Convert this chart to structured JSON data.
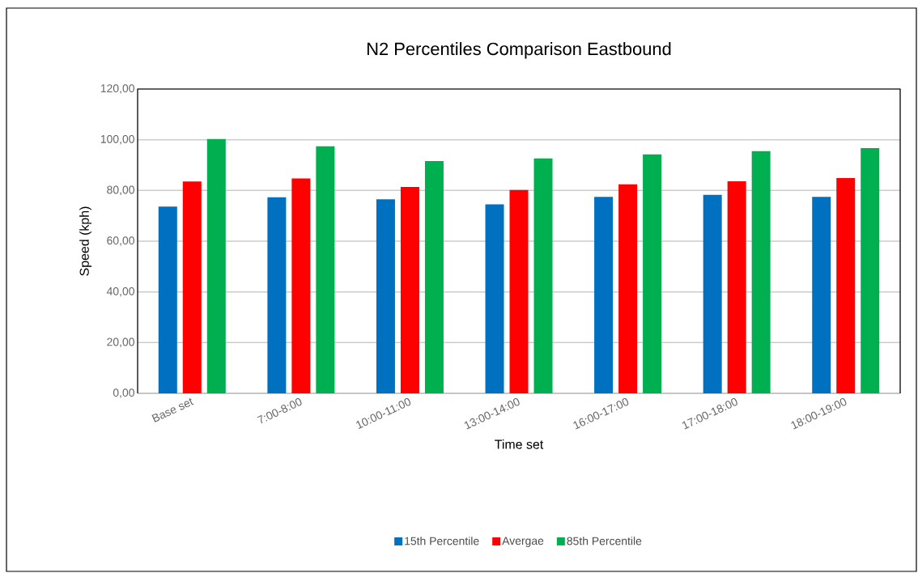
{
  "chart_data": {
    "type": "bar",
    "title": "N2 Percentiles Comparison Eastbound",
    "xlabel": "Time set",
    "ylabel": "Speed (kph)",
    "categories": [
      "Base set",
      "7:00-8:00",
      "10:00-11:00",
      "13:00-14:00",
      "16:00-17:00",
      "17:00-18:00",
      "18:00-19:00"
    ],
    "series": [
      {
        "name": "15th Percentile",
        "color": "#0070c0",
        "values": [
          73.6,
          77.3,
          76.5,
          74.5,
          77.5,
          78.3,
          77.5
        ]
      },
      {
        "name": "Avergae",
        "color": "#ff0000",
        "values": [
          83.5,
          84.7,
          81.4,
          80.2,
          82.4,
          83.6,
          84.9
        ]
      },
      {
        "name": "85th Percentile",
        "color": "#00b050",
        "values": [
          100.3,
          97.4,
          91.6,
          92.6,
          94.2,
          95.5,
          96.7
        ]
      }
    ],
    "ylim": [
      0,
      120
    ],
    "yticks": [
      {
        "value": 0,
        "label": "0,00"
      },
      {
        "value": 20,
        "label": "20,00"
      },
      {
        "value": 40,
        "label": "40,00"
      },
      {
        "value": 60,
        "label": "60,00"
      },
      {
        "value": 80,
        "label": "80,00"
      },
      {
        "value": 100,
        "label": "100,00"
      },
      {
        "value": 120,
        "label": "120,00"
      }
    ],
    "grid": "y",
    "legend": "bottom"
  }
}
